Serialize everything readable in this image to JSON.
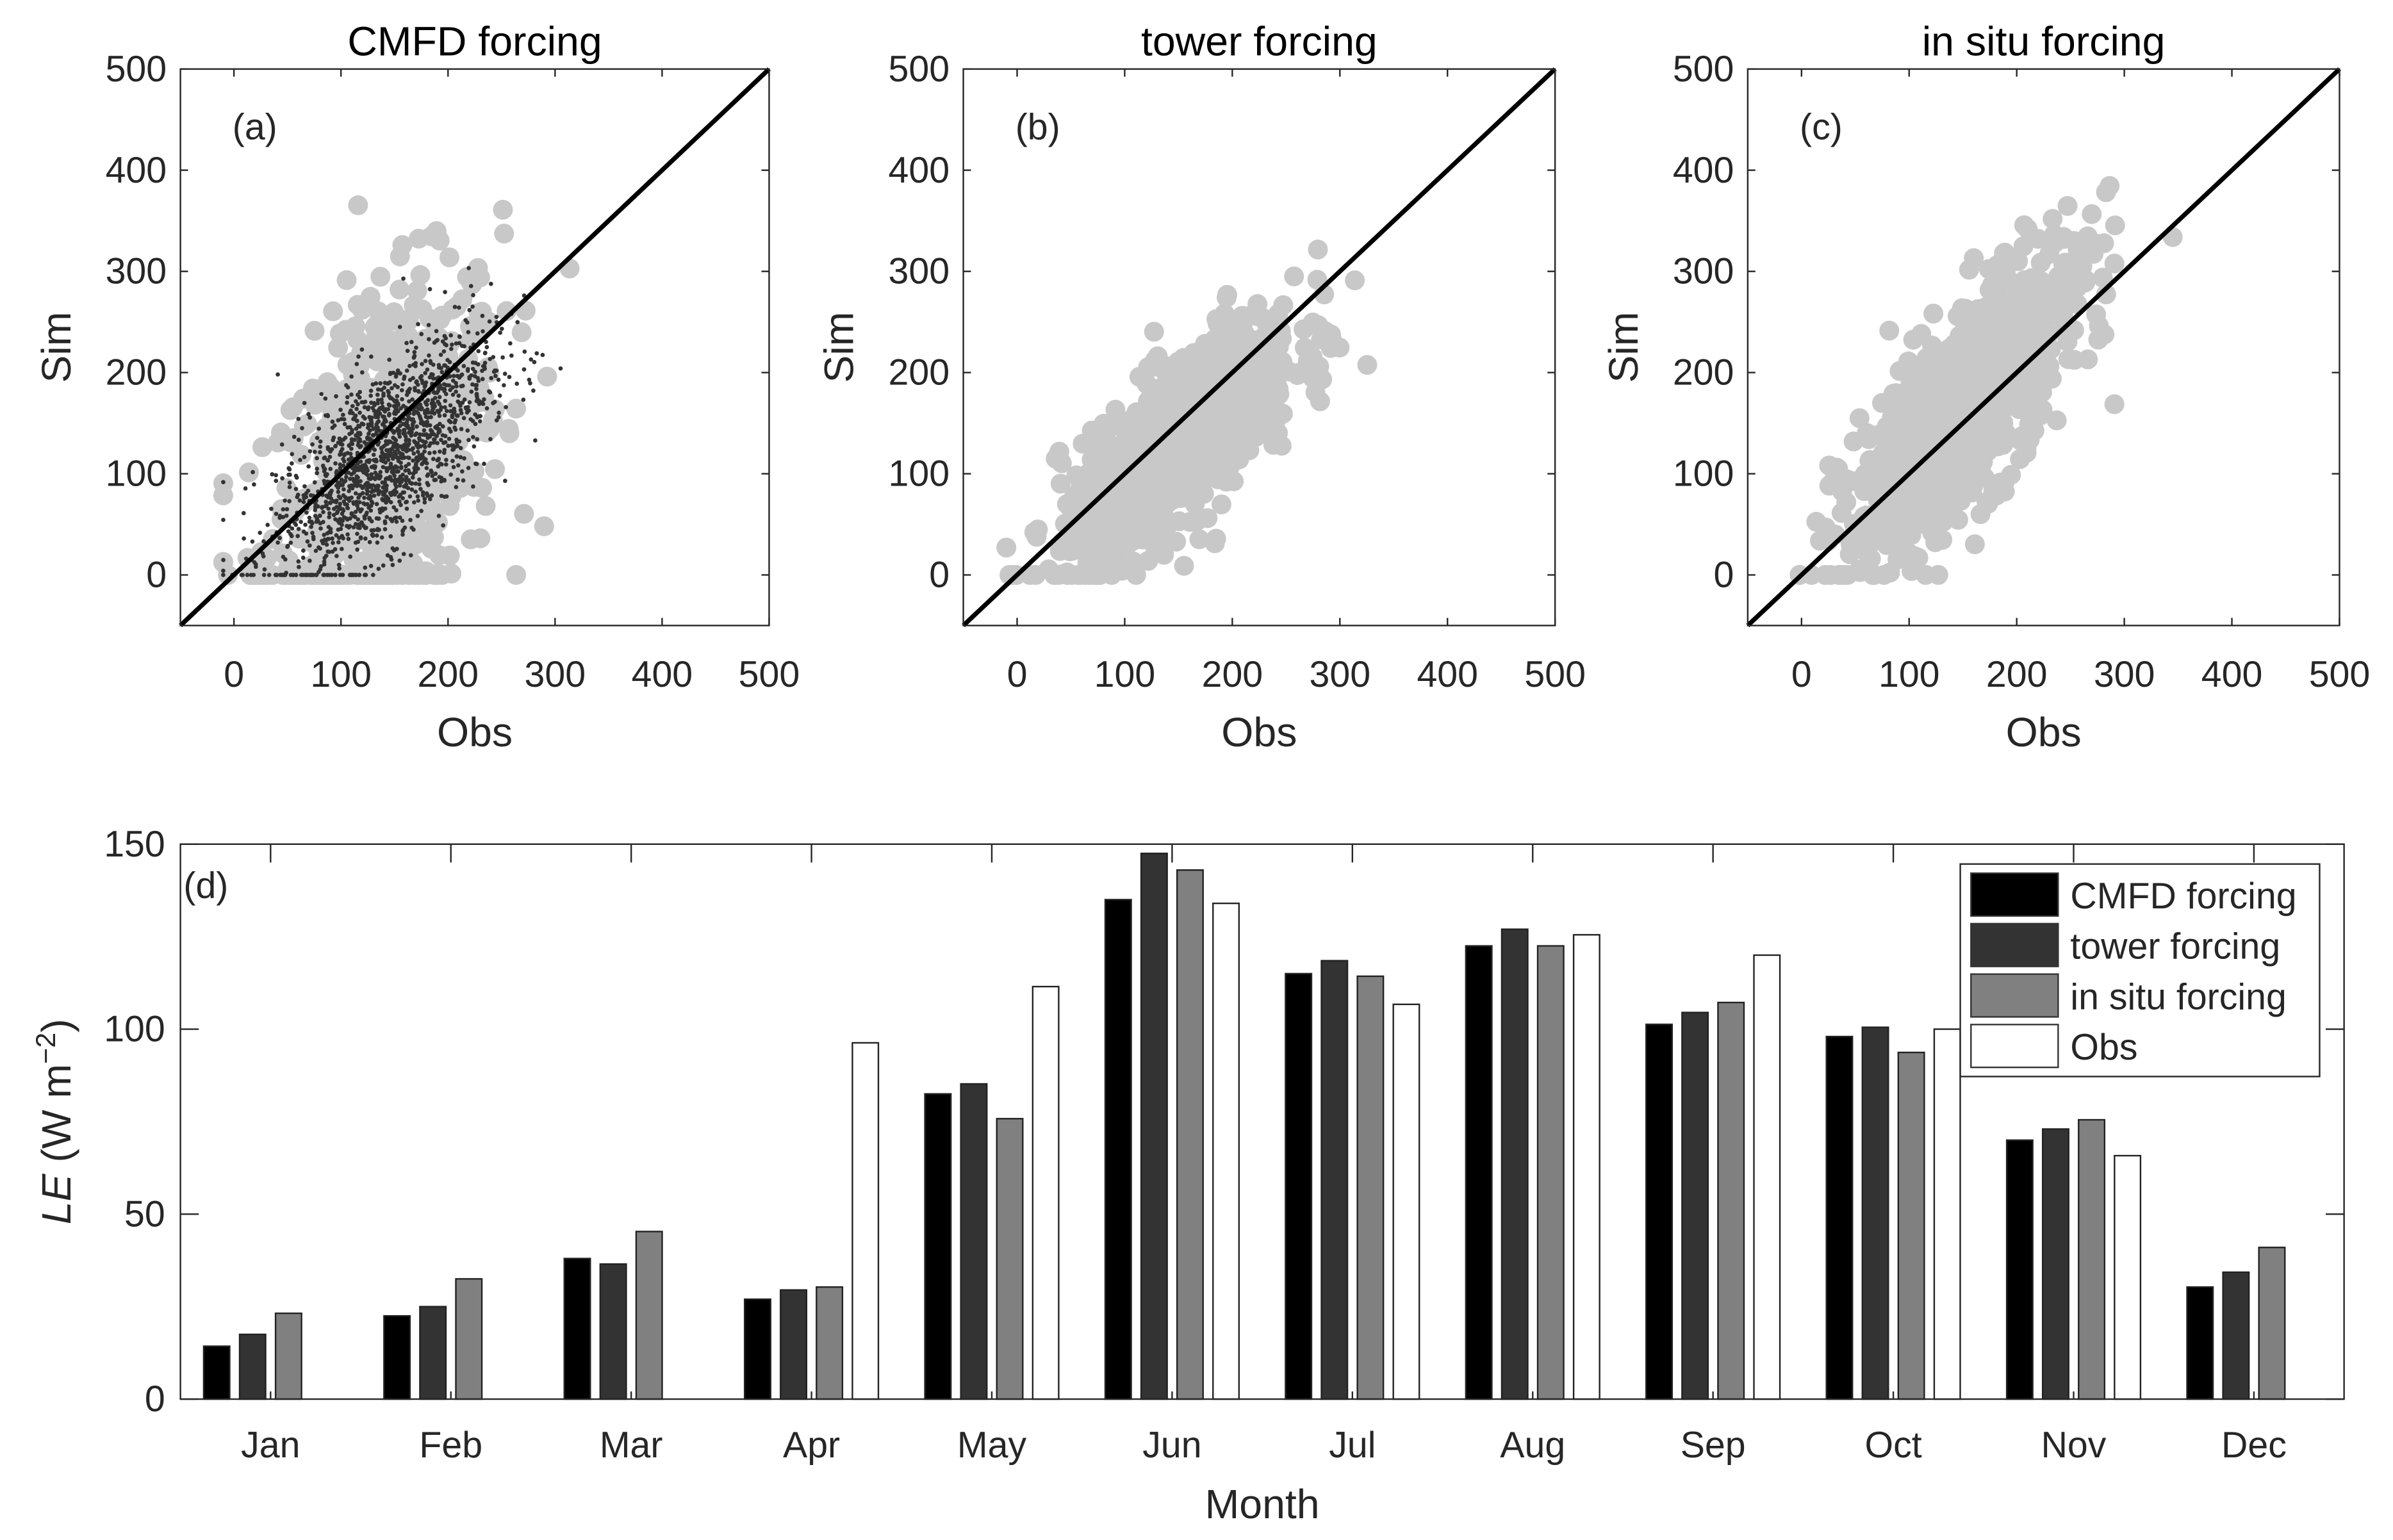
{
  "chart_data": [
    {
      "type": "scatter",
      "panel": "(a)",
      "title": "CMFD forcing",
      "xlabel": "Obs",
      "ylabel": "Sim",
      "xlim": [
        -50,
        500
      ],
      "ylim": [
        -50,
        500
      ],
      "xticks": [
        "0",
        "100",
        "200",
        "300",
        "400",
        "500"
      ],
      "yticks": [
        "0",
        "100",
        "200",
        "300",
        "400",
        "500"
      ],
      "reference_line": "1:1",
      "series": [
        {
          "name": "grey",
          "color": "#c8c8c8",
          "approx_n": 700,
          "obs_mean": 140,
          "obs_sd": 55,
          "slope": 0.75,
          "noise_sd": 85
        },
        {
          "name": "dark",
          "color": "#333333",
          "approx_n": 1600,
          "obs_mean": 140,
          "obs_sd": 50,
          "slope": 0.8,
          "noise_sd": 45
        }
      ]
    },
    {
      "type": "scatter",
      "panel": "(b)",
      "title": "tower forcing",
      "xlabel": "Obs",
      "ylabel": "Sim",
      "xlim": [
        -50,
        500
      ],
      "ylim": [
        -50,
        500
      ],
      "xticks": [
        "0",
        "100",
        "200",
        "300",
        "400",
        "500"
      ],
      "yticks": [
        "0",
        "100",
        "200",
        "300",
        "400",
        "500"
      ],
      "reference_line": "1:1",
      "series": [
        {
          "name": "grey",
          "color": "#c8c8c8",
          "approx_n": 900,
          "obs_mean": 150,
          "obs_sd": 55,
          "slope": 0.85,
          "noise_sd": 40
        }
      ]
    },
    {
      "type": "scatter",
      "panel": "(c)",
      "title": "in situ forcing",
      "xlabel": "Obs",
      "ylabel": "Sim",
      "xlim": [
        -50,
        500
      ],
      "ylim": [
        -50,
        500
      ],
      "xticks": [
        "0",
        "100",
        "200",
        "300",
        "400",
        "500"
      ],
      "yticks": [
        "0",
        "100",
        "200",
        "300",
        "400",
        "500"
      ],
      "reference_line": "1:1",
      "series": [
        {
          "name": "grey",
          "color": "#c8c8c8",
          "approx_n": 900,
          "obs_mean": 150,
          "obs_sd": 55,
          "slope": 1.1,
          "noise_sd": 50
        }
      ]
    },
    {
      "type": "bar",
      "panel": "(d)",
      "xlabel": "Month",
      "ylabel_italic": "LE",
      "ylabel_rest": " (W m",
      "ylabel_sup": "−2",
      "ylabel_close": ")",
      "ylim": [
        0,
        150
      ],
      "yticks": [
        "0",
        "50",
        "100",
        "150"
      ],
      "categories": [
        "Jan",
        "Feb",
        "Mar",
        "Apr",
        "May",
        "Jun",
        "Jul",
        "Aug",
        "Sep",
        "Oct",
        "Nov",
        "Dec"
      ],
      "legend_position": "top-right",
      "series": [
        {
          "name": "CMFD forcing",
          "color": "#000000",
          "values": [
            14.3,
            22.5,
            38,
            27,
            82.5,
            135,
            115,
            122.5,
            101.3,
            98,
            70,
            30.3
          ]
        },
        {
          "name": "tower forcing",
          "color": "#333333",
          "values": [
            17.5,
            25,
            36.5,
            29.5,
            85.2,
            147.5,
            118.5,
            127,
            104.5,
            100.5,
            73,
            34.3
          ]
        },
        {
          "name": "in situ forcing",
          "color": "#808080",
          "values": [
            23.2,
            32.5,
            45.3,
            30.3,
            75.8,
            143,
            114.3,
            122.5,
            107.2,
            93.7,
            75.5,
            41
          ]
        },
        {
          "name": "Obs",
          "color": "#ffffff",
          "values": [
            null,
            null,
            null,
            96.3,
            111.5,
            134,
            106.7,
            125.5,
            120,
            100,
            65.8,
            null
          ]
        }
      ]
    }
  ]
}
